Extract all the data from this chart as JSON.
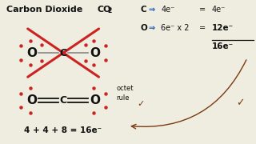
{
  "title": "Carbon Dioxide",
  "formula": "CO",
  "formula_sub": "2",
  "bg_color": "#eeede0",
  "text_color": "#111111",
  "red_color": "#cc2222",
  "blue_color": "#1155bb",
  "brown_color": "#7a3a10",
  "right_panel": {
    "line1_label": "C",
    "line1_arrow": "⇒",
    "line1_val": "4e⁻",
    "line1_eq": "=",
    "line1_result": "4e⁻",
    "line2_label": "O",
    "line2_arrow": "⇒",
    "line2_val": "6e⁻ x 2",
    "line2_eq": "=",
    "line2_result": "12e⁻",
    "total": "16e⁻"
  },
  "bottom_text": "4 + 4 + 8 = 16e⁻",
  "octet_text1": "octet",
  "octet_text2": "rule",
  "check": "✓"
}
